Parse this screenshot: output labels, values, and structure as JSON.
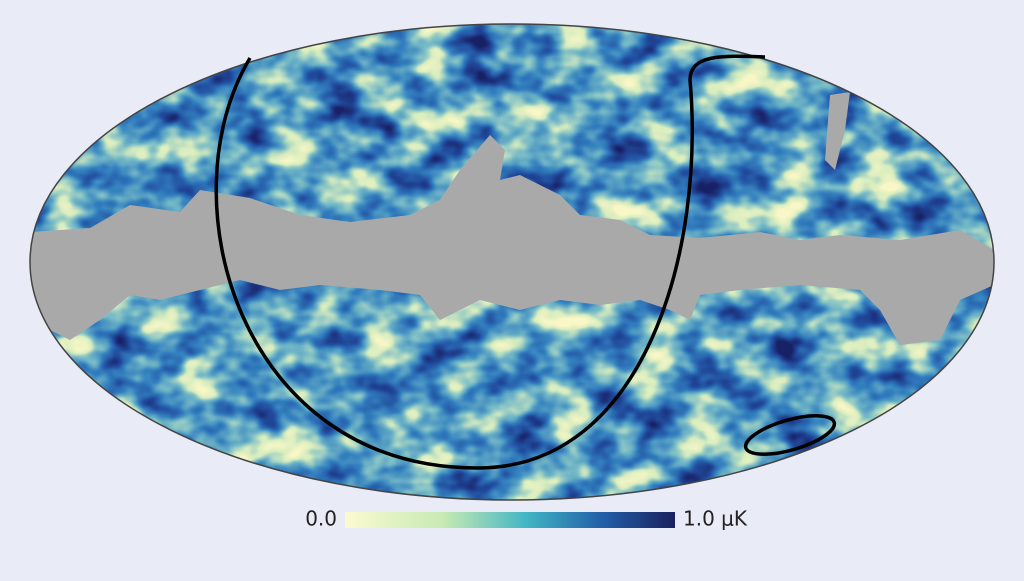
{
  "colorbar": {
    "min_label": "0.0",
    "max_label": "1.0 μK"
  }
}
